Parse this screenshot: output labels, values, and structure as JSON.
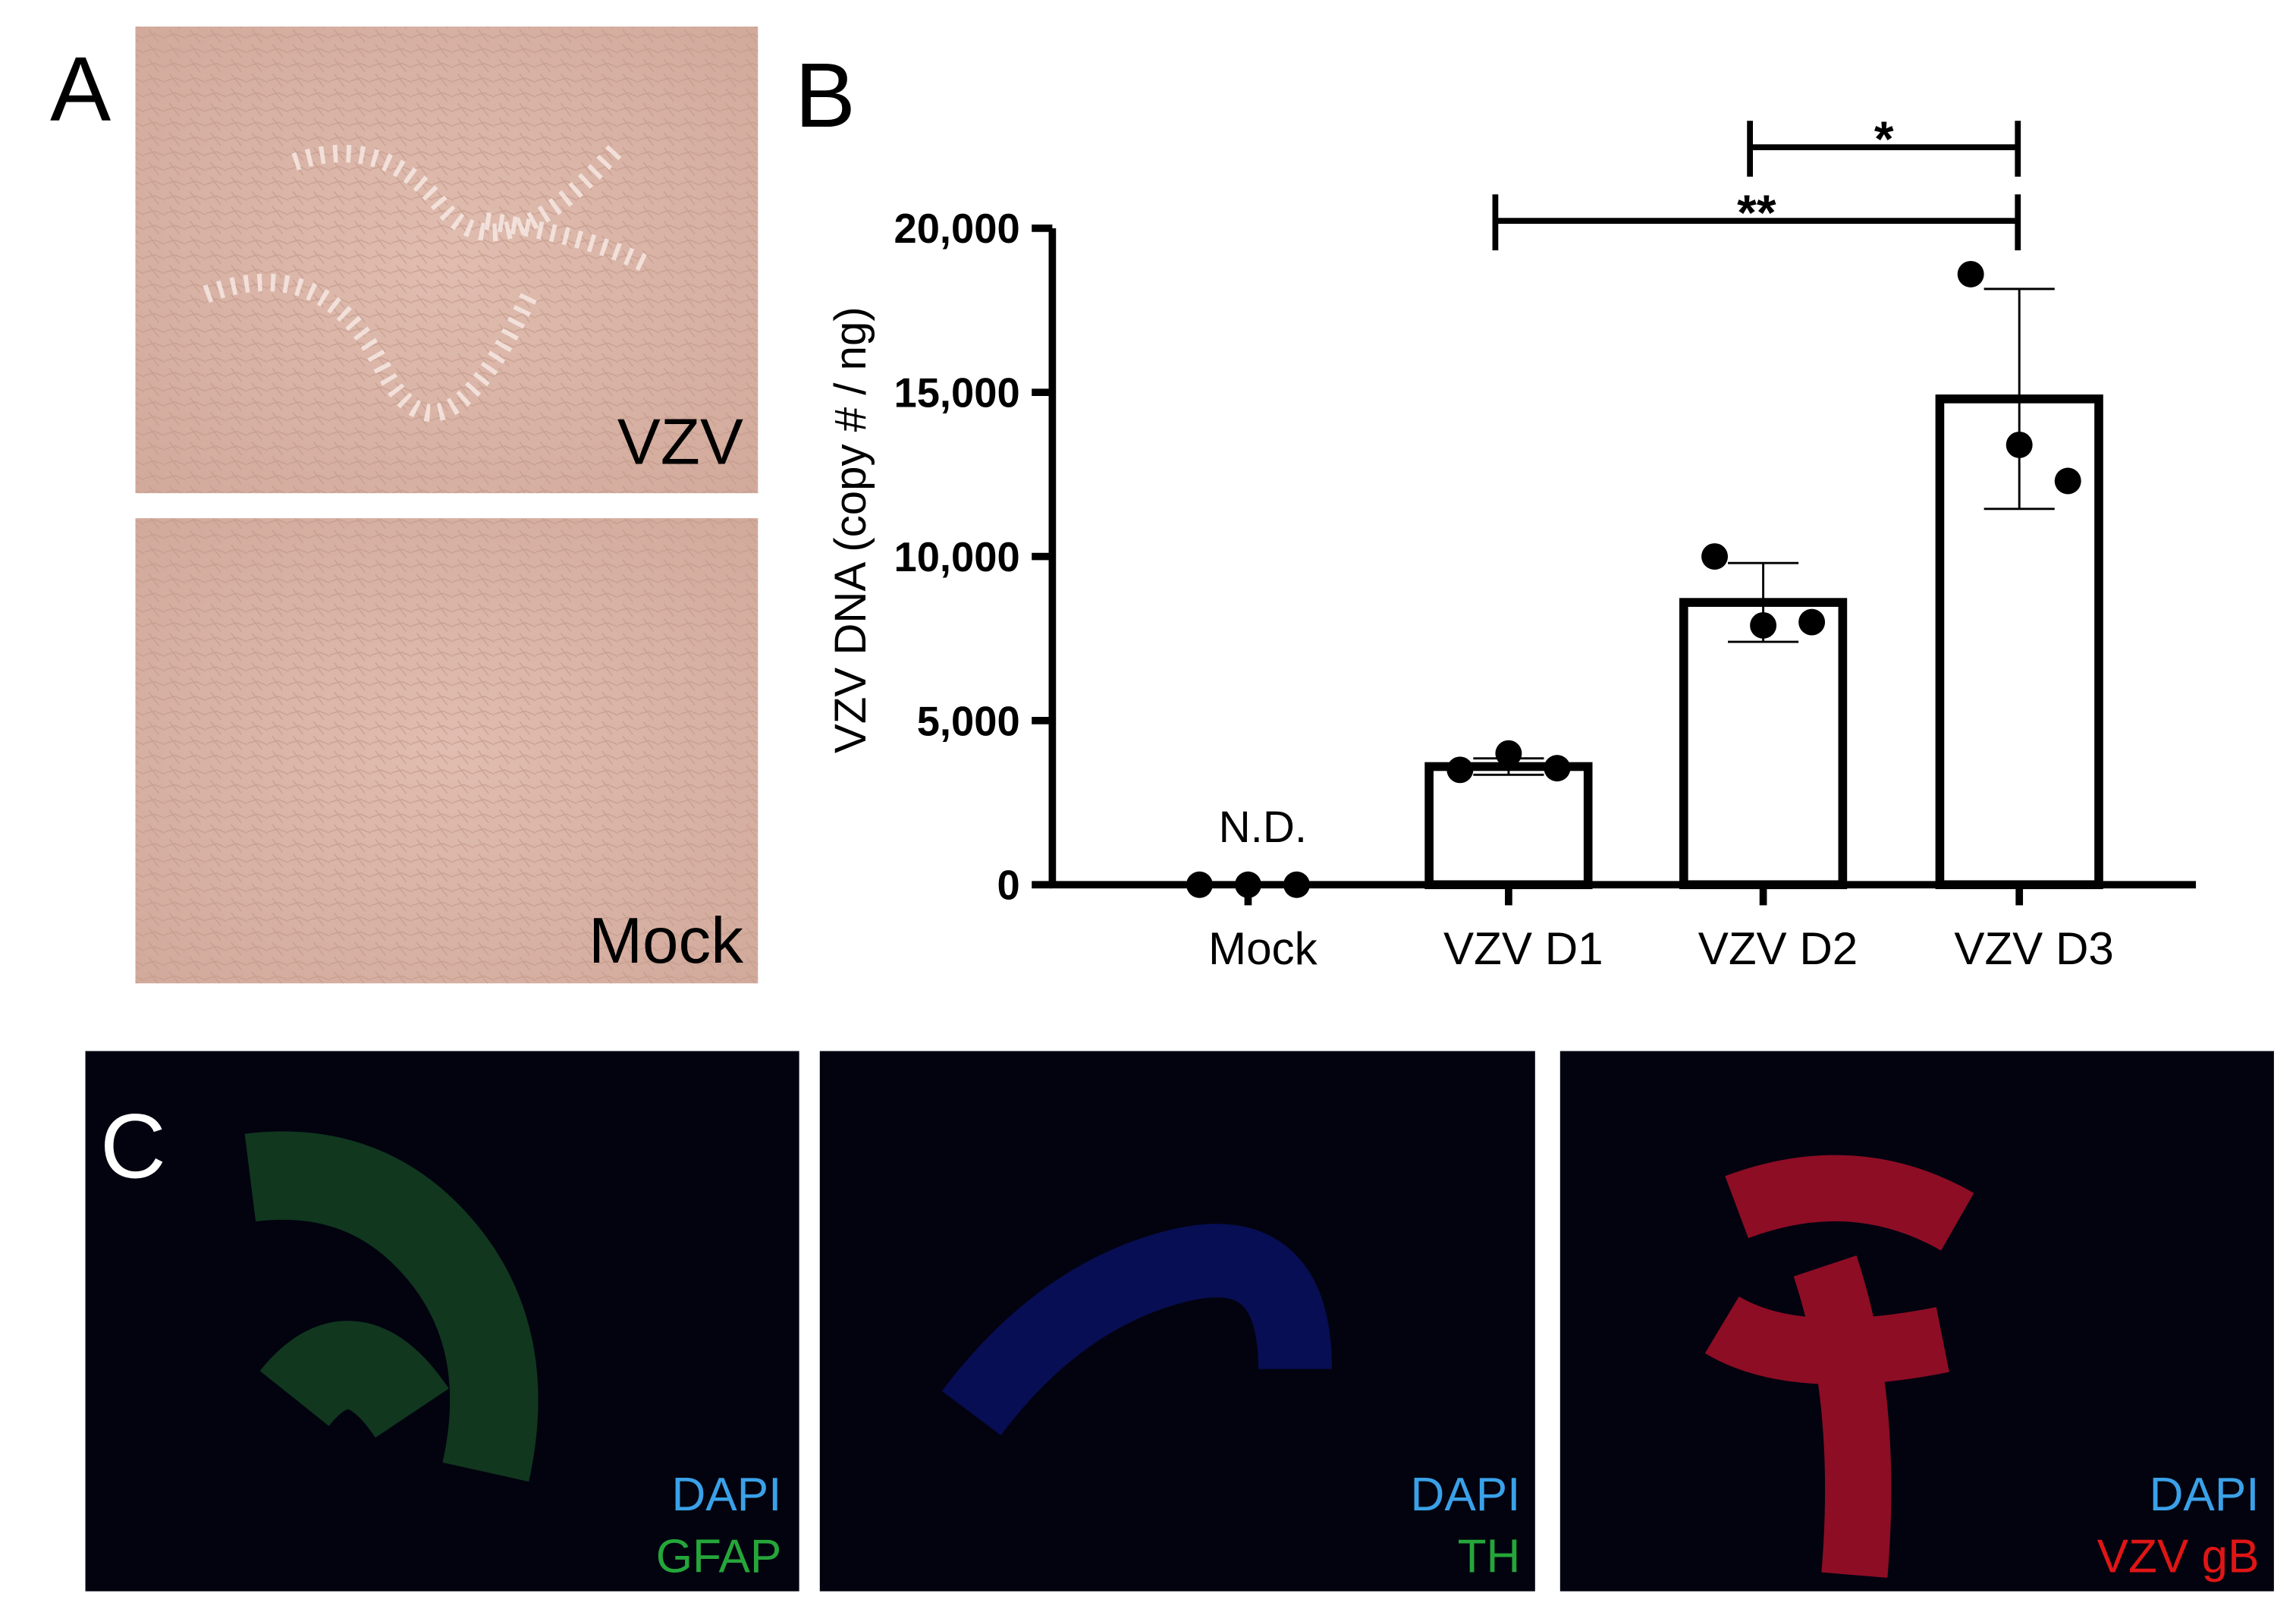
{
  "figure": {
    "panel_labels": [
      "A",
      "B",
      "C"
    ],
    "panel_a_captions": [
      "VZV",
      "Mock"
    ],
    "panel_c_captions": [
      [
        "DAPI",
        "GFAP"
      ],
      [
        "DAPI",
        "TH"
      ],
      [
        "DAPI",
        "VZV gB"
      ]
    ]
  },
  "chart_data": {
    "type": "bar",
    "y_label": "VZV DNA (copy # / ng)",
    "categories": [
      "Mock",
      "VZV D1",
      "VZV D2",
      "VZV D3"
    ],
    "values": [
      0,
      3600,
      8600,
      14800
    ],
    "errors": [
      0,
      250,
      1200,
      3350
    ],
    "points": [
      [
        0,
        0,
        0
      ],
      [
        3500,
        4000,
        3550
      ],
      [
        10000,
        7900,
        8000
      ],
      [
        18600,
        13400,
        12300
      ]
    ],
    "annotations": [
      {
        "category": 0,
        "text": "N.D."
      }
    ],
    "significance": [
      {
        "from": 1,
        "to": 3,
        "label": "**"
      },
      {
        "from": 2,
        "to": 3,
        "label": "*"
      }
    ],
    "color": "#ffffff",
    "ylim": [
      0,
      20000
    ],
    "yticks": [
      0,
      {
        "value": 5000,
        "label": "5,000"
      },
      {
        "value": 10000,
        "label": "10,000"
      },
      {
        "value": 15000,
        "label": "15,000"
      },
      {
        "value": 20000,
        "label": "20,000"
      }
    ]
  }
}
